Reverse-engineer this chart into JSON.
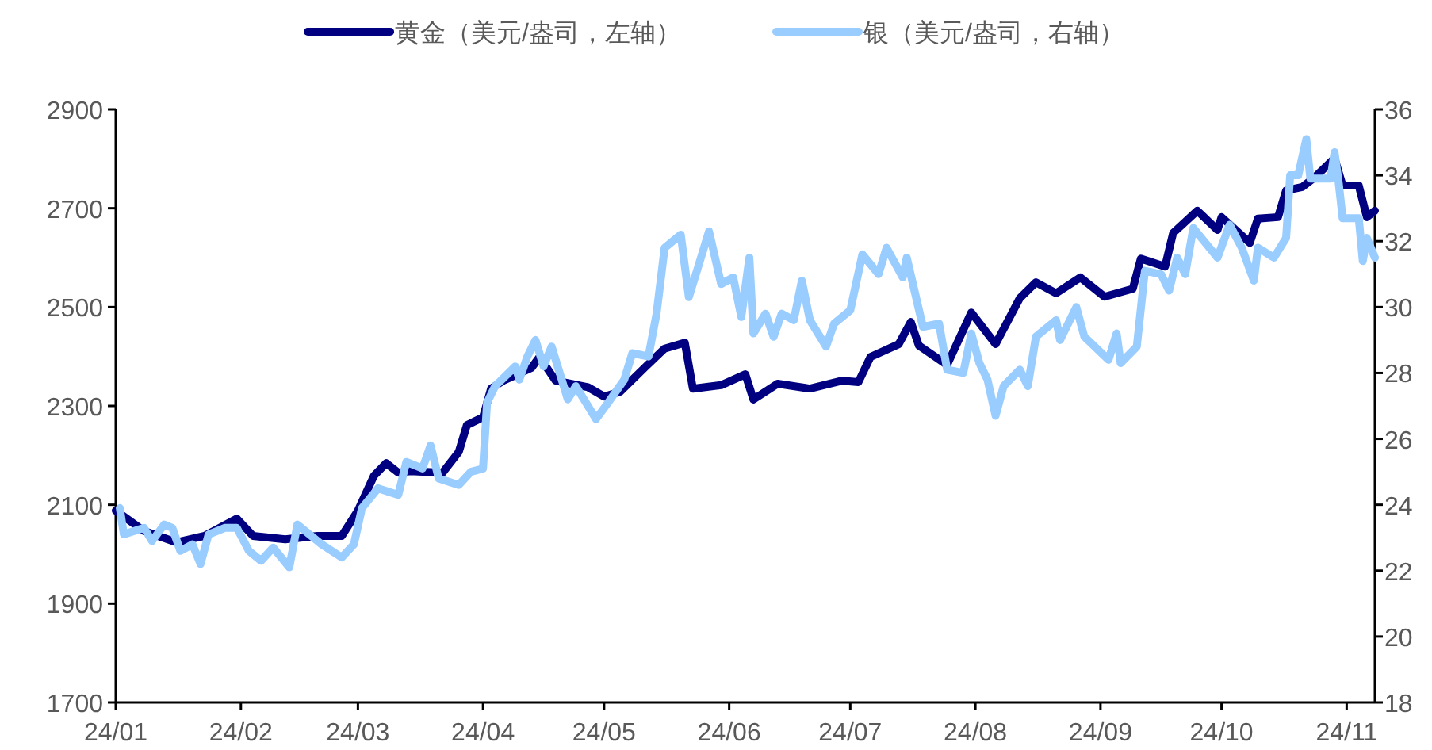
{
  "chart_data": {
    "type": "line",
    "series": [
      {
        "name": "黄金（美元/盎司，左轴）",
        "color": "#000080",
        "x": [
          "--01-01",
          "--01-08",
          "--01-16",
          "--01-23",
          "--01-31",
          "--02-04",
          "--02-12",
          "--02-20",
          "--02-26",
          "--03-01",
          "--03-05",
          "--03-08",
          "--03-11",
          "--03-14",
          "--03-22",
          "--03-26",
          "--03-28",
          "--04-01",
          "--04-03",
          "--04-06",
          "--04-13",
          "--04-15",
          "--04-19",
          "--04-27",
          "--05-01",
          "--05-05",
          "--05-11",
          "--05-16",
          "--05-21",
          "--05-23",
          "--05-30",
          "--06-05",
          "--06-07",
          "--06-13",
          "--06-21",
          "--06-29",
          "--07-03",
          "--07-06",
          "--07-13",
          "--07-16",
          "--07-18",
          "--07-25",
          "--07-31",
          "--08-06",
          "--08-12",
          "--08-16",
          "--08-21",
          "--08-27",
          "--09-02",
          "--09-09",
          "--09-11",
          "--09-17",
          "--09-19",
          "--09-25",
          "--09-30",
          "--10-01",
          "--10-08",
          "--10-10",
          "--10-15",
          "--10-17",
          "--10-21",
          "--10-24",
          "--10-29",
          "--10-31",
          "--11-04",
          "--11-06",
          "--11-08"
        ],
        "values": [
          2088,
          2047,
          2024,
          2037,
          2072,
          2037,
          2030,
          2037,
          2037,
          2088,
          2159,
          2184,
          2165,
          2168,
          2165,
          2207,
          2261,
          2277,
          2335,
          2351,
          2377,
          2399,
          2351,
          2338,
          2319,
          2329,
          2377,
          2416,
          2428,
          2335,
          2342,
          2364,
          2313,
          2345,
          2335,
          2351,
          2348,
          2399,
          2425,
          2470,
          2422,
          2383,
          2489,
          2425,
          2518,
          2550,
          2528,
          2560,
          2521,
          2537,
          2598,
          2582,
          2650,
          2695,
          2656,
          2682,
          2630,
          2679,
          2682,
          2736,
          2743,
          2762,
          2801,
          2746,
          2746,
          2682,
          2695
        ]
      },
      {
        "name": "银（美元/盎司，右轴）",
        "color": "#99ccff",
        "axis": "y2",
        "x": [
          "--01-02",
          "--01-03",
          "--01-08",
          "--01-10",
          "--01-13",
          "--01-15",
          "--01-17",
          "--01-20",
          "--01-22",
          "--01-24",
          "--01-28",
          "--01-31",
          "--02-03",
          "--02-06",
          "--02-09",
          "--02-13",
          "--02-15",
          "--02-18",
          "--02-21",
          "--02-26",
          "--02-29",
          "--03-02",
          "--03-06",
          "--03-11",
          "--03-13",
          "--03-17",
          "--03-19",
          "--03-21",
          "--03-26",
          "--03-29",
          "--04-01",
          "--04-02",
          "--04-04",
          "--04-09",
          "--04-10",
          "--04-12",
          "--04-14",
          "--04-16",
          "--04-18",
          "--04-22",
          "--04-24",
          "--04-29",
          "--05-02",
          "--05-06",
          "--05-08",
          "--05-12",
          "--05-14",
          "--05-16",
          "--05-20",
          "--05-22",
          "--05-27",
          "--05-30",
          "--06-02",
          "--06-04",
          "--06-06",
          "--06-07",
          "--06-10",
          "--06-12",
          "--06-14",
          "--06-17",
          "--06-19",
          "--06-21",
          "--06-25",
          "--06-27",
          "--07-01",
          "--07-04",
          "--07-08",
          "--07-10",
          "--07-14",
          "--07-15",
          "--07-19",
          "--07-23",
          "--07-25",
          "--07-29",
          "--07-31",
          "--08-02",
          "--08-04",
          "--08-06",
          "--08-08",
          "--08-12",
          "--08-14",
          "--08-16",
          "--08-21",
          "--08-22",
          "--08-26",
          "--08-28",
          "--09-03",
          "--09-05",
          "--09-06",
          "--09-10",
          "--09-12",
          "--09-16",
          "--09-18",
          "--09-20",
          "--09-22",
          "--09-24",
          "--09-30",
          "--10-03",
          "--10-06",
          "--10-09",
          "--10-10",
          "--10-14",
          "--10-17",
          "--10-18",
          "--10-20",
          "--10-22",
          "--10-23",
          "--10-28",
          "--10-29",
          "--10-30",
          "--10-31",
          "--11-04",
          "--11-05",
          "--11-06",
          "--11-08"
        ],
        "values": [
          23.9,
          23.1,
          23.3,
          22.9,
          23.4,
          23.3,
          22.6,
          22.8,
          22.2,
          23.1,
          23.3,
          23.3,
          22.6,
          22.3,
          22.7,
          22.1,
          23.4,
          23.1,
          22.8,
          22.4,
          22.8,
          23.9,
          24.5,
          24.3,
          25.3,
          25.1,
          25.8,
          24.8,
          24.6,
          25.0,
          25.1,
          27.1,
          27.6,
          28.2,
          27.8,
          28.5,
          29.0,
          28.2,
          28.8,
          27.2,
          27.6,
          26.6,
          27.1,
          27.8,
          28.6,
          28.5,
          29.8,
          31.8,
          32.2,
          30.3,
          32.3,
          30.7,
          30.9,
          29.7,
          31.5,
          29.2,
          29.8,
          29.1,
          29.8,
          29.6,
          30.8,
          29.6,
          28.8,
          29.5,
          29.9,
          31.6,
          31.0,
          31.8,
          30.9,
          31.5,
          29.4,
          29.5,
          28.1,
          28.0,
          29.2,
          28.3,
          27.8,
          26.7,
          27.6,
          28.1,
          27.6,
          29.1,
          29.6,
          29.0,
          30.0,
          29.1,
          28.4,
          29.2,
          28.3,
          28.8,
          31.1,
          31.0,
          30.5,
          31.5,
          31.0,
          32.4,
          31.5,
          32.5,
          31.8,
          30.8,
          31.8,
          31.5,
          32.1,
          34.0,
          34.0,
          35.1,
          33.9,
          33.9,
          34.7,
          33.8,
          32.7,
          32.7,
          31.4,
          32.1,
          31.5
        ]
      }
    ],
    "xlim": [
      "--01-01",
      "--11-08"
    ],
    "xticks": [
      {
        "value": "--01-01",
        "label": "24/01"
      },
      {
        "value": "--02-01",
        "label": "24/02"
      },
      {
        "value": "--03-01",
        "label": "24/03"
      },
      {
        "value": "--04-01",
        "label": "24/04"
      },
      {
        "value": "--05-01",
        "label": "24/05"
      },
      {
        "value": "--06-01",
        "label": "24/06"
      },
      {
        "value": "--07-01",
        "label": "24/07"
      },
      {
        "value": "--08-01",
        "label": "24/08"
      },
      {
        "value": "--09-01",
        "label": "24/09"
      },
      {
        "value": "--10-01",
        "label": "24/10"
      },
      {
        "value": "--11-01",
        "label": "24/11"
      }
    ],
    "ylim": [
      1700,
      2900
    ],
    "yticks": [
      1700,
      1900,
      2100,
      2300,
      2500,
      2700,
      2900
    ],
    "y2lim": [
      18,
      36
    ],
    "y2ticks": [
      18,
      20,
      22,
      24,
      26,
      28,
      30,
      32,
      34,
      36
    ],
    "legend": "top",
    "grid": false,
    "marker": "none",
    "line_style": "solid"
  }
}
